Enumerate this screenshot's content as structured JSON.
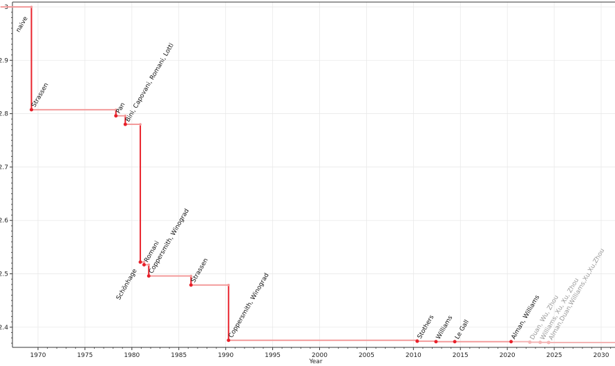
{
  "chart_data": {
    "type": "line",
    "title": "",
    "xlabel": "Year",
    "ylabel": "",
    "xlim": [
      1966,
      2031.5
    ],
    "ylim": [
      2.36,
      3.01
    ],
    "xticks": [
      1970,
      1975,
      1980,
      1985,
      1990,
      1995,
      2000,
      2005,
      2010,
      2015,
      2020,
      2025,
      2030
    ],
    "yticks": [
      "2.4",
      "2.5",
      "2.6",
      "2.7",
      "2.8",
      "2.9",
      "3"
    ],
    "grid": true,
    "colors": {
      "step": "#e8202a",
      "horizontal": "#f39a9a",
      "future": "#f4b4b4",
      "future_text": "#999999"
    },
    "points": [
      {
        "label": "naive",
        "year": 1966,
        "value": 3.0,
        "style": "below"
      },
      {
        "label": "Strassen",
        "year": 1969.3,
        "value": 2.8074
      },
      {
        "label": "Pan",
        "year": 1978.3,
        "value": 2.796
      },
      {
        "label": "Bini, Capovani, Romani, Lotti",
        "year": 1979.3,
        "value": 2.78
      },
      {
        "label": "Schönhage",
        "year": 1980.9,
        "value": 2.522,
        "style": "below"
      },
      {
        "label": "Romani",
        "year": 1981.3,
        "value": 2.517
      },
      {
        "label": "Coppersmith, Winograd",
        "year": 1981.8,
        "value": 2.496
      },
      {
        "label": "Strassen",
        "year": 1986.3,
        "value": 2.479
      },
      {
        "label": "Coppersmith, Winograd",
        "year": 1990.3,
        "value": 2.3755
      },
      {
        "label": "Stothers",
        "year": 2010.4,
        "value": 2.3737
      },
      {
        "label": "Williams",
        "year": 2012.4,
        "value": 2.3729
      },
      {
        "label": "Le Gall",
        "year": 2014.4,
        "value": 2.37286
      },
      {
        "label": "Alman, Williams",
        "year": 2020.4,
        "value": 2.37286
      },
      {
        "label": "Duan, Wu, Zhou",
        "year": 2022.4,
        "value": 2.37188,
        "future": true
      },
      {
        "label": "Williams, Xu, Xu, Zhou",
        "year": 2023.5,
        "value": 2.37155,
        "future": true
      },
      {
        "label": "Alman,Duan,Williams,Xu,Xu,Zhou",
        "year": 2024.4,
        "value": 2.37134,
        "future": true
      }
    ]
  }
}
